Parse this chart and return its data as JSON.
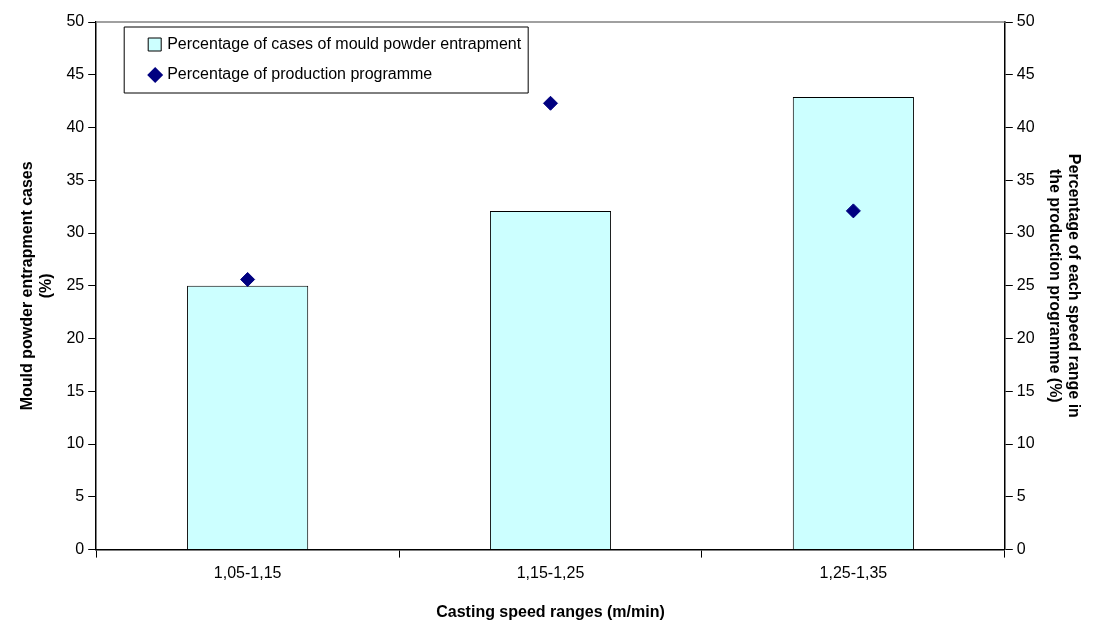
{
  "chart_data": {
    "type": "bar",
    "xlabel": "Casting speed ranges (m/min)",
    "ylabel": "Mould powder entrapment cases\n(%)",
    "y2label": "Percentage of each speed range in\nthe production programme (%)",
    "categories": [
      "1,05-1,15",
      "1,15-1,25",
      "1,25-1,35"
    ],
    "series": [
      {
        "name": "Percentage of cases of mould powder entrapment",
        "color": "#ccffff",
        "values": [
          25,
          32.1,
          42.9
        ]
      },
      {
        "name": "Percentage of production programme",
        "type": "scatter",
        "axis": "y2",
        "color": "#000080",
        "marker": "diamond",
        "values": [
          25.6,
          42.3,
          32.1
        ]
      }
    ],
    "ylim": [
      0,
      50
    ],
    "yticks": [
      0,
      5,
      10,
      15,
      20,
      25,
      30,
      35,
      40,
      45,
      50
    ],
    "y2lim": [
      0,
      50
    ],
    "y2ticks": [
      0,
      5,
      10,
      15,
      20,
      25,
      30,
      35,
      40,
      45,
      50
    ],
    "grid": false,
    "legend": "top left"
  }
}
